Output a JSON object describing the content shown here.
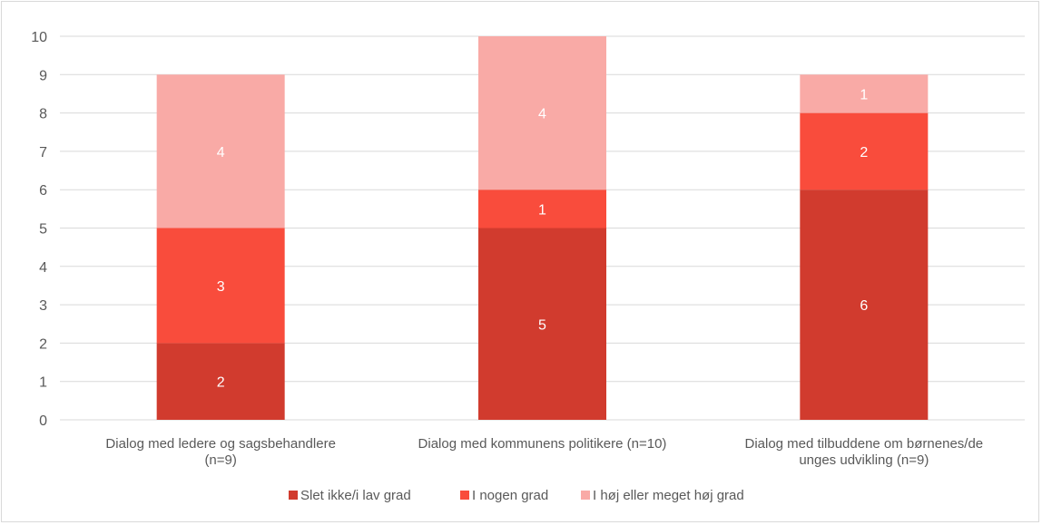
{
  "chart_data": {
    "type": "bar",
    "stacked": true,
    "categories": [
      [
        "Dialog med ledere og sagsbehandlere",
        "(n=9)"
      ],
      [
        "Dialog med kommunens politikere (n=10)"
      ],
      [
        "Dialog med tilbuddene om børnenes/de",
        "unges udvikling (n=9)"
      ]
    ],
    "series": [
      {
        "name": "Slet ikke/i lav grad",
        "color": "#d13b2e",
        "values": [
          2,
          5,
          6
        ]
      },
      {
        "name": "I nogen grad",
        "color": "#f94c3c",
        "values": [
          3,
          1,
          2
        ]
      },
      {
        "name": "I høj eller meget høj grad",
        "color": "#f9aaa6",
        "values": [
          4,
          4,
          1
        ]
      }
    ],
    "ylim": [
      0,
      10
    ],
    "yticks": [
      "0",
      "1",
      "2",
      "3",
      "4",
      "5",
      "6",
      "7",
      "8",
      "9",
      "10"
    ],
    "grid": true,
    "legend": "bottom",
    "xlabel": "",
    "ylabel": ""
  }
}
